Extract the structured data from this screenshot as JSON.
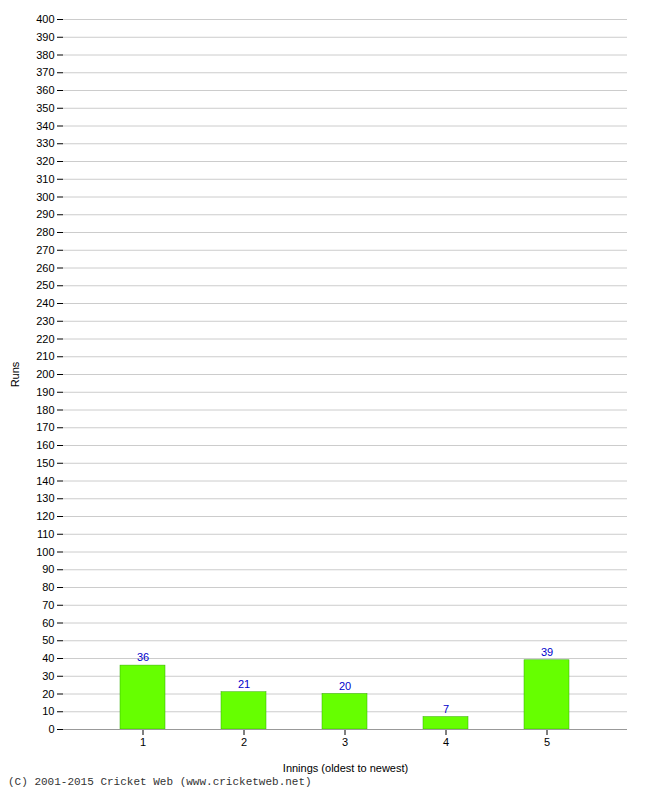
{
  "chart_data": {
    "type": "bar",
    "categories": [
      "1",
      "2",
      "3",
      "4",
      "5"
    ],
    "values": [
      36,
      21,
      20,
      7,
      39
    ],
    "color": "#66ff00",
    "xlabel": "Innings (oldest to newest)",
    "ylabel": "Runs",
    "ylim": [
      0,
      400
    ],
    "yticks": [
      0,
      10,
      20,
      30,
      40,
      50,
      60,
      70,
      80,
      90,
      100,
      110,
      120,
      130,
      140,
      150,
      160,
      170,
      180,
      190,
      200,
      210,
      220,
      230,
      240,
      250,
      260,
      270,
      280,
      290,
      300,
      310,
      320,
      330,
      340,
      350,
      360,
      370,
      380,
      390,
      400
    ],
    "grid": true,
    "data_labels": true,
    "annotations": [
      "(C) 2001-2015 Cricket Web (www.cricketweb.net)"
    ]
  }
}
